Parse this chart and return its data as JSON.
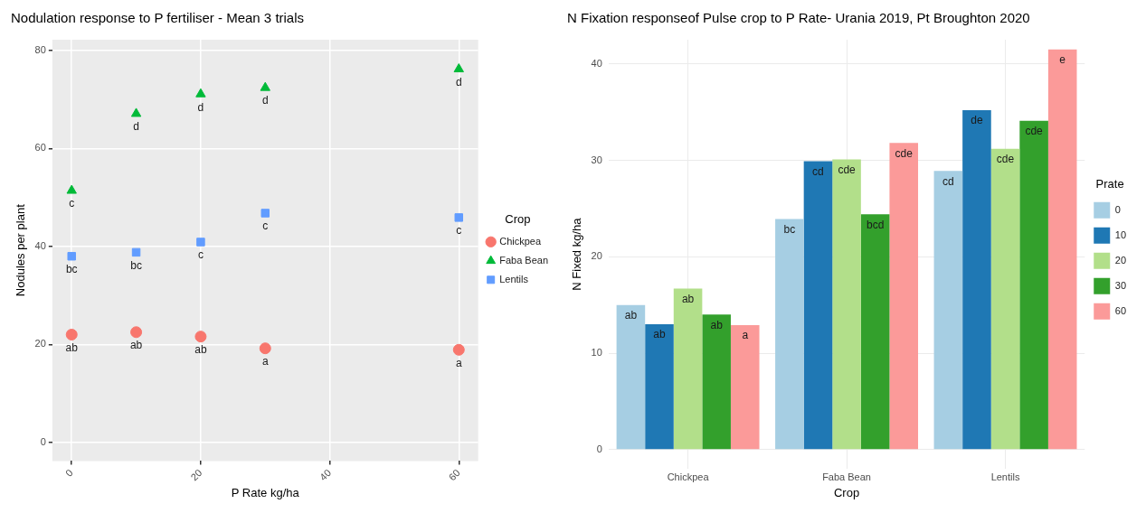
{
  "chart_data": [
    {
      "type": "scatter",
      "title": "Nodulation response to P fertiliser - Mean 3 trials",
      "xlabel": "P Rate kg/ha",
      "ylabel": "Nodules per plant",
      "legend_title": "Crop",
      "legend": "right",
      "grid": true,
      "x": [
        0,
        10,
        20,
        30,
        60
      ],
      "xlim": [
        -3,
        63
      ],
      "xticks": [
        0,
        20,
        40,
        60
      ],
      "ylim": [
        -3.8,
        82.2
      ],
      "yticks": [
        0,
        20,
        40,
        60,
        80
      ],
      "series": [
        {
          "name": "Chickpea",
          "color": "#f8766d",
          "marker": "circle",
          "values": [
            22.0,
            22.5,
            21.6,
            19.2,
            18.9
          ]
        },
        {
          "name": "Faba Bean",
          "color": "#00ba38",
          "marker": "triangle",
          "values": [
            51.4,
            67.1,
            71.1,
            72.4,
            76.2
          ]
        },
        {
          "name": "Lentils",
          "color": "#619cff",
          "marker": "square",
          "values": [
            38.0,
            38.8,
            40.9,
            46.8,
            45.9
          ]
        }
      ],
      "annotations": [
        {
          "text": "ab",
          "x": 0,
          "y": 22.0
        },
        {
          "text": "ab",
          "x": 10,
          "y": 22.5
        },
        {
          "text": "ab",
          "x": 20,
          "y": 21.6
        },
        {
          "text": "a",
          "x": 30,
          "y": 19.2
        },
        {
          "text": "a",
          "x": 60,
          "y": 18.9
        },
        {
          "text": "c",
          "x": 0,
          "y": 51.4
        },
        {
          "text": "d",
          "x": 10,
          "y": 67.1
        },
        {
          "text": "d",
          "x": 20,
          "y": 71.1
        },
        {
          "text": "d",
          "x": 30,
          "y": 72.4
        },
        {
          "text": "d",
          "x": 60,
          "y": 76.2
        },
        {
          "text": "bc",
          "x": 0,
          "y": 38.0
        },
        {
          "text": "bc",
          "x": 10,
          "y": 38.8
        },
        {
          "text": "c",
          "x": 20,
          "y": 40.9
        },
        {
          "text": "c",
          "x": 30,
          "y": 46.8
        },
        {
          "text": "c",
          "x": 60,
          "y": 45.9
        }
      ]
    },
    {
      "type": "bar",
      "title": "N Fixation responseof Pulse crop to P Rate- Urania 2019, Pt Broughton 2020",
      "xlabel": "Crop",
      "ylabel": "N Fixed kg/ha",
      "legend_title": "Prate",
      "legend": "right",
      "grid": true,
      "categories": [
        "Chickpea",
        "Faba Bean",
        "Lentils"
      ],
      "ylim": [
        -2,
        42.5
      ],
      "yticks": [
        0,
        10,
        20,
        30,
        40
      ],
      "series": [
        {
          "name": "0",
          "color": "#a6cee3",
          "values": [
            15.0,
            23.9,
            28.9
          ],
          "value_labels": [
            "ab",
            "bc",
            "cd"
          ]
        },
        {
          "name": "10",
          "color": "#1f78b4",
          "values": [
            13.0,
            29.9,
            35.2
          ],
          "value_labels": [
            "ab",
            "cd",
            "de"
          ]
        },
        {
          "name": "20",
          "color": "#b2df8a",
          "values": [
            16.7,
            30.1,
            31.2
          ],
          "value_labels": [
            "ab",
            "cde",
            "cde"
          ]
        },
        {
          "name": "30",
          "color": "#33a02c",
          "values": [
            14.0,
            24.4,
            34.1
          ],
          "value_labels": [
            "ab",
            "bcd",
            "cde"
          ]
        },
        {
          "name": "60",
          "color": "#fb9a99",
          "values": [
            12.9,
            31.8,
            41.5
          ],
          "value_labels": [
            "a",
            "cde",
            "e"
          ]
        }
      ]
    }
  ]
}
